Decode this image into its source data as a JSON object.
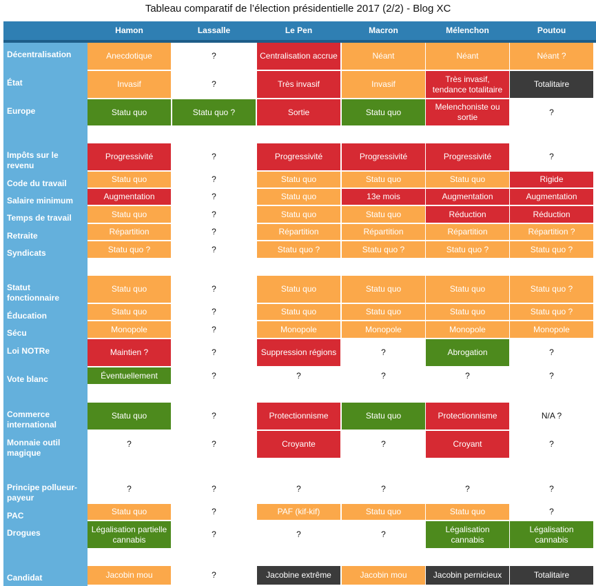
{
  "title": "Tableau comparatif de l’élection présidentielle 2017 (2/2) - Blog XC",
  "candidates": [
    "Hamon",
    "Lassalle",
    "Le Pen",
    "Macron",
    "Mélenchon",
    "Poutou"
  ],
  "colors": {
    "orange": "#fba84a",
    "red": "#d62a33",
    "green": "#4d8a1d",
    "dark": "#3b3b3b",
    "header": "#2f7fb3",
    "side": "#64b0dc"
  },
  "rows": [
    {
      "label": "Décentralisation",
      "cells": [
        {
          "t": "Anecdotique",
          "c": "orange"
        },
        {
          "t": "?",
          "c": "white"
        },
        {
          "t": "Centralisation accrue",
          "c": "red"
        },
        {
          "t": "Néant",
          "c": "orange"
        },
        {
          "t": "Néant",
          "c": "orange"
        },
        {
          "t": "Néant ?",
          "c": "orange"
        }
      ]
    },
    {
      "label": "État",
      "cells": [
        {
          "t": "Invasif",
          "c": "orange"
        },
        {
          "t": "?",
          "c": "white"
        },
        {
          "t": "Très invasif",
          "c": "red"
        },
        {
          "t": "Invasif",
          "c": "orange"
        },
        {
          "t": "Très invasif, tendance totalitaire",
          "c": "red"
        },
        {
          "t": "Totalitaire",
          "c": "dark"
        }
      ]
    },
    {
      "label": "Europe",
      "cells": [
        {
          "t": "Statu quo",
          "c": "green"
        },
        {
          "t": "Statu quo ?",
          "c": "green"
        },
        {
          "t": "Sortie",
          "c": "red"
        },
        {
          "t": "Statu quo",
          "c": "green"
        },
        {
          "t": "Melenchoniste ou sortie",
          "c": "red"
        },
        {
          "t": "?",
          "c": "white"
        }
      ]
    },
    {
      "label": "Impôts sur le revenu",
      "cells": [
        {
          "t": "Progressivité",
          "c": "red"
        },
        {
          "t": "?",
          "c": "white"
        },
        {
          "t": "Progressivité",
          "c": "red"
        },
        {
          "t": "Progressivité",
          "c": "red"
        },
        {
          "t": "Progressivité",
          "c": "red"
        },
        {
          "t": "?",
          "c": "white"
        }
      ]
    },
    {
      "label": "Code du travail",
      "cells": [
        {
          "t": "Statu quo",
          "c": "orange"
        },
        {
          "t": "?",
          "c": "white"
        },
        {
          "t": "Statu quo",
          "c": "orange"
        },
        {
          "t": "Statu quo",
          "c": "orange"
        },
        {
          "t": "Statu quo",
          "c": "orange"
        },
        {
          "t": "Rigide",
          "c": "red"
        }
      ]
    },
    {
      "label": "Salaire minimum",
      "cells": [
        {
          "t": "Augmentation",
          "c": "red"
        },
        {
          "t": "?",
          "c": "white"
        },
        {
          "t": "Statu quo",
          "c": "orange"
        },
        {
          "t": "13e mois",
          "c": "red"
        },
        {
          "t": "Augmentation",
          "c": "red"
        },
        {
          "t": "Augmentation",
          "c": "red"
        }
      ]
    },
    {
      "label": "Temps de travail",
      "cells": [
        {
          "t": "Statu quo",
          "c": "orange"
        },
        {
          "t": "?",
          "c": "white"
        },
        {
          "t": "Statu quo",
          "c": "orange"
        },
        {
          "t": "Statu quo",
          "c": "orange"
        },
        {
          "t": "Réduction",
          "c": "red"
        },
        {
          "t": "Réduction",
          "c": "red"
        }
      ]
    },
    {
      "label": "Retraite",
      "cells": [
        {
          "t": "Répartition",
          "c": "orange"
        },
        {
          "t": "?",
          "c": "white"
        },
        {
          "t": "Répartition",
          "c": "orange"
        },
        {
          "t": "Répartition",
          "c": "orange"
        },
        {
          "t": "Répartition",
          "c": "orange"
        },
        {
          "t": "Répartition ?",
          "c": "orange"
        }
      ]
    },
    {
      "label": "Syndicats",
      "cells": [
        {
          "t": "Statu quo ?",
          "c": "orange"
        },
        {
          "t": "?",
          "c": "white"
        },
        {
          "t": "Statu quo ?",
          "c": "orange"
        },
        {
          "t": "Statu quo ?",
          "c": "orange"
        },
        {
          "t": "Statu quo ?",
          "c": "orange"
        },
        {
          "t": "Statu quo ?",
          "c": "orange"
        }
      ]
    },
    {
      "label": "Statut fonctionnaire",
      "cells": [
        {
          "t": "Statu quo",
          "c": "orange"
        },
        {
          "t": "?",
          "c": "white"
        },
        {
          "t": "Statu quo",
          "c": "orange"
        },
        {
          "t": "Statu quo",
          "c": "orange"
        },
        {
          "t": "Statu quo",
          "c": "orange"
        },
        {
          "t": "Statu quo ?",
          "c": "orange"
        }
      ]
    },
    {
      "label": "Éducation",
      "cells": [
        {
          "t": "Statu quo",
          "c": "orange"
        },
        {
          "t": "?",
          "c": "white"
        },
        {
          "t": "Statu quo",
          "c": "orange"
        },
        {
          "t": "Statu quo",
          "c": "orange"
        },
        {
          "t": "Statu quo",
          "c": "orange"
        },
        {
          "t": "Statu quo ?",
          "c": "orange"
        }
      ]
    },
    {
      "label": "Sécu",
      "cells": [
        {
          "t": "Monopole",
          "c": "orange"
        },
        {
          "t": "?",
          "c": "white"
        },
        {
          "t": "Monopole",
          "c": "orange"
        },
        {
          "t": "Monopole",
          "c": "orange"
        },
        {
          "t": "Monopole",
          "c": "orange"
        },
        {
          "t": "Monopole",
          "c": "orange"
        }
      ]
    },
    {
      "label": "Loi NOTRe",
      "cells": [
        {
          "t": "Maintien ?",
          "c": "red"
        },
        {
          "t": "?",
          "c": "white"
        },
        {
          "t": "Suppression régions",
          "c": "red"
        },
        {
          "t": "?",
          "c": "white"
        },
        {
          "t": "Abrogation",
          "c": "green"
        },
        {
          "t": "?",
          "c": "white"
        }
      ]
    },
    {
      "label": "Vote blanc",
      "cells": [
        {
          "t": "Éventuellement",
          "c": "green"
        },
        {
          "t": "?",
          "c": "white"
        },
        {
          "t": "?",
          "c": "white"
        },
        {
          "t": "?",
          "c": "white"
        },
        {
          "t": "?",
          "c": "white"
        },
        {
          "t": "?",
          "c": "white"
        }
      ]
    },
    {
      "label": "Commerce international",
      "cells": [
        {
          "t": "Statu quo",
          "c": "green"
        },
        {
          "t": "?",
          "c": "white"
        },
        {
          "t": "Protectionnisme",
          "c": "red"
        },
        {
          "t": "Statu quo",
          "c": "green"
        },
        {
          "t": "Protectionnisme",
          "c": "red"
        },
        {
          "t": "N/A ?",
          "c": "white"
        }
      ]
    },
    {
      "label": "Monnaie outil magique",
      "cells": [
        {
          "t": "?",
          "c": "white"
        },
        {
          "t": "?",
          "c": "white"
        },
        {
          "t": "Croyante",
          "c": "red"
        },
        {
          "t": "?",
          "c": "white"
        },
        {
          "t": "Croyant",
          "c": "red"
        },
        {
          "t": "?",
          "c": "white"
        }
      ]
    },
    {
      "label": "Principe pollueur-payeur",
      "cells": [
        {
          "t": "?",
          "c": "white"
        },
        {
          "t": "?",
          "c": "white"
        },
        {
          "t": "?",
          "c": "white"
        },
        {
          "t": "?",
          "c": "white"
        },
        {
          "t": "?",
          "c": "white"
        },
        {
          "t": "?",
          "c": "white"
        }
      ]
    },
    {
      "label": "PAC",
      "cells": [
        {
          "t": "Statu quo",
          "c": "orange"
        },
        {
          "t": "?",
          "c": "white"
        },
        {
          "t": "PAF (kif-kif)",
          "c": "orange"
        },
        {
          "t": "Statu quo",
          "c": "orange"
        },
        {
          "t": "Statu quo",
          "c": "orange"
        },
        {
          "t": "?",
          "c": "white"
        }
      ]
    },
    {
      "label": "Drogues",
      "cells": [
        {
          "t": "Légalisation partielle cannabis",
          "c": "green"
        },
        {
          "t": "?",
          "c": "white"
        },
        {
          "t": "?",
          "c": "white"
        },
        {
          "t": "?",
          "c": "white"
        },
        {
          "t": "Légalisation cannabis",
          "c": "green"
        },
        {
          "t": "Légalisation cannabis",
          "c": "green"
        }
      ]
    },
    {
      "label": "Candidat",
      "cells": [
        {
          "t": "Jacobin mou",
          "c": "orange"
        },
        {
          "t": "?",
          "c": "white"
        },
        {
          "t": "Jacobine extrême",
          "c": "dark"
        },
        {
          "t": "Jacobin mou",
          "c": "orange"
        },
        {
          "t": "Jacobin pernicieux",
          "c": "dark"
        },
        {
          "t": "Totalitaire",
          "c": "dark"
        }
      ]
    }
  ]
}
